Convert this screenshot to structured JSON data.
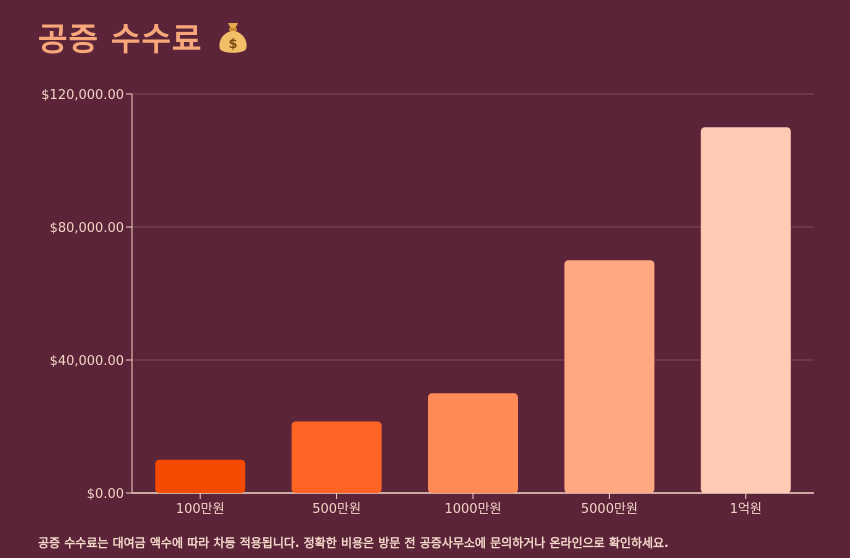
{
  "title": "공증 수수료",
  "title_icon": "money-bag-icon",
  "footnote": "공증 수수료는 대여금 액수에 따라 차등 적용됩니다. 정확한 비용은 방문 전 공증사무소에 문의하거나 온라인으로 확인하세요.",
  "colors": {
    "background": "#5b2438",
    "title": "#f7a77a",
    "axis": "#f4d4c6",
    "grid": "#7e4a5c",
    "bars": [
      "#f54a00",
      "#ff6424",
      "#ff8a55",
      "#ffa882",
      "#ffcab3"
    ]
  },
  "chart_data": {
    "type": "bar",
    "categories": [
      "100만원",
      "500만원",
      "1000만원",
      "5000만원",
      "1억원"
    ],
    "values": [
      10000,
      21500,
      30000,
      70000,
      110000
    ],
    "ylim": [
      0,
      120000
    ],
    "yticks": [
      0,
      40000,
      80000,
      120000
    ],
    "ytick_labels": [
      "$0.00",
      "$40,000.00",
      "$80,000.00",
      "$120,000.00"
    ],
    "grid": true,
    "xlabel": "",
    "ylabel": ""
  }
}
